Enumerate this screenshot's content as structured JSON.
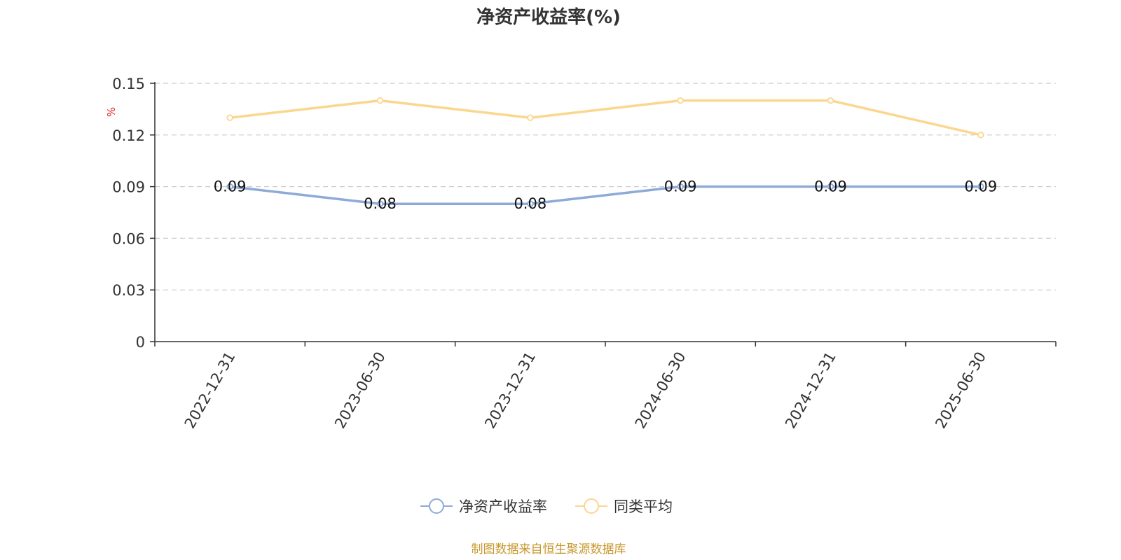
{
  "chart_data": {
    "type": "line",
    "title": "净资产收益率(%)",
    "ylabel": "%",
    "xlabel": "",
    "categories": [
      "2022-12-31",
      "2023-06-30",
      "2023-12-31",
      "2024-06-30",
      "2024-12-31",
      "2025-06-30"
    ],
    "ylim": [
      0,
      0.15
    ],
    "yticks": [
      "0",
      "0.03",
      "0.06",
      "0.09",
      "0.12",
      "0.15"
    ],
    "grid": true,
    "legend_position": "bottom",
    "series": [
      {
        "name": "净资产收益率",
        "color": "#8eaad8",
        "values": [
          0.09,
          0.08,
          0.08,
          0.09,
          0.09,
          0.09
        ],
        "labels": [
          "0.09",
          "0.08",
          "0.08",
          "0.09",
          "0.09",
          "0.09"
        ]
      },
      {
        "name": "同类平均",
        "color": "#fbd68f",
        "values": [
          0.13,
          0.14,
          0.13,
          0.14,
          0.14,
          0.12
        ]
      }
    ],
    "source": "制图数据来自恒生聚源数据库"
  }
}
